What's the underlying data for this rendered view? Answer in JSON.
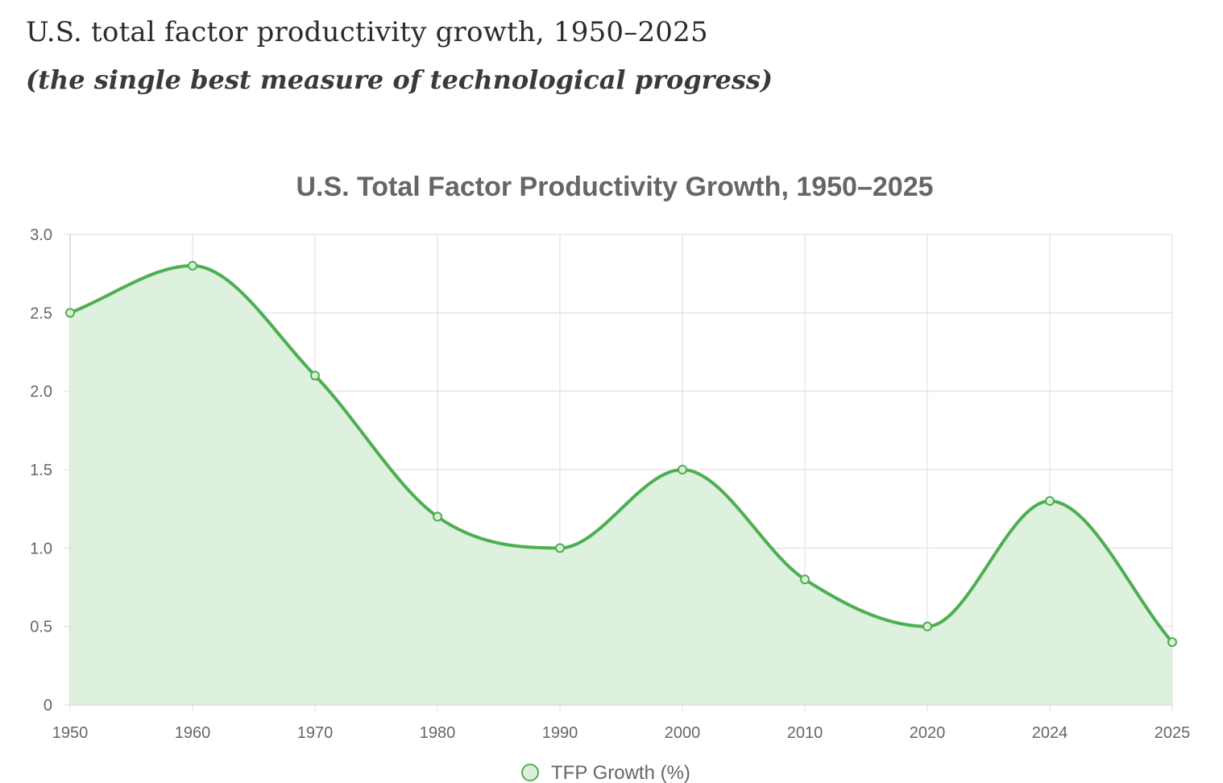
{
  "page": {
    "heading": "U.S. total factor productivity growth, 1950–2025",
    "subheading": "(the single best measure of technological progress)"
  },
  "colors": {
    "line": "#4caf50",
    "fill": "#dcefdc",
    "grid": "#dcdcdc",
    "axis_text": "#666666"
  },
  "chart_data": {
    "type": "line",
    "title": "U.S. Total Factor Productivity Growth, 1950–2025",
    "xlabel": "",
    "ylabel": "",
    "categories": [
      "1950",
      "1960",
      "1970",
      "1980",
      "1990",
      "2000",
      "2010",
      "2020",
      "2024",
      "2025"
    ],
    "series": [
      {
        "name": "TFP Growth (%)",
        "values": [
          2.5,
          2.8,
          2.1,
          1.2,
          1.0,
          1.5,
          0.8,
          0.5,
          1.3,
          0.4
        ],
        "filled": true,
        "smooth": true
      }
    ],
    "ylim": [
      0,
      3.0
    ],
    "yticks": [
      "0",
      "0.5",
      "1.0",
      "1.5",
      "2.0",
      "2.5",
      "3.0"
    ],
    "ytick_values": [
      0,
      0.5,
      1.0,
      1.5,
      2.0,
      2.5,
      3.0
    ],
    "grid": true,
    "legend_position": "bottom"
  }
}
